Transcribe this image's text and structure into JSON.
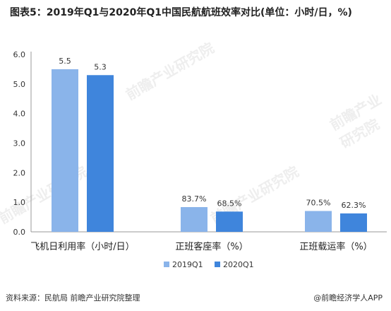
{
  "title": "图表5：2019年Q1与2020年Q1中国民航航班效率对比(单位：小时/日，%)",
  "source": "资料来源：民航局 前瞻产业研究院整理",
  "credit": "@前瞻经济学人APP",
  "watermarks": [
    "前瞻产业研究院",
    "前瞻产业研究院",
    "前瞻产业研究院",
    "前瞻产业研究院"
  ],
  "colors": {
    "s2019": "#8ab4ea",
    "s2020": "#3f85dc",
    "axis": "#999999",
    "text": "#333333"
  },
  "chart_data": {
    "type": "bar",
    "categories": [
      "飞机日利用率（小时/日）",
      "正班客座率（%）",
      "正班载运率（%）"
    ],
    "series": [
      {
        "name": "2019Q1",
        "values": [
          5.5,
          0.837,
          0.705
        ],
        "labels": [
          "5.5",
          "83.7%",
          "70.5%"
        ]
      },
      {
        "name": "2020Q1",
        "values": [
          5.3,
          0.685,
          0.623
        ],
        "labels": [
          "5.3",
          "68.5%",
          "62.3%"
        ]
      }
    ],
    "yticks": [
      "0.0",
      "1.0",
      "2.0",
      "3.0",
      "4.0",
      "5.0",
      "6.0"
    ],
    "ylim": [
      0,
      6
    ],
    "legend_position": "bottom"
  }
}
